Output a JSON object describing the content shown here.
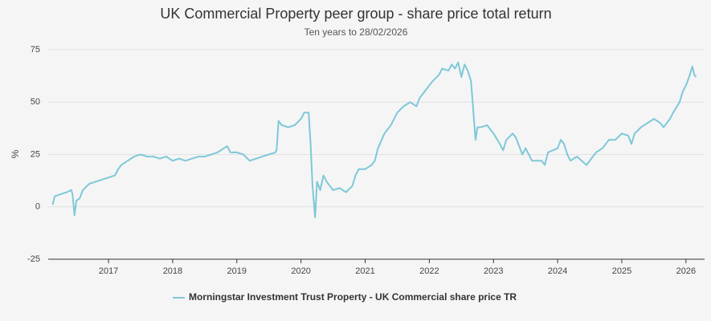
{
  "chart_data": {
    "type": "line",
    "title": "UK Commercial Property peer group - share price total return",
    "subtitle": "Ten years to 28/02/2026",
    "y_label": "%",
    "xlim": [
      2016.06,
      2026.29
    ],
    "xticks": [
      {
        "value": 2017,
        "label": "2017"
      },
      {
        "value": 2018,
        "label": "2018"
      },
      {
        "value": 2019,
        "label": "2019"
      },
      {
        "value": 2020,
        "label": "2020"
      },
      {
        "value": 2021,
        "label": "2021"
      },
      {
        "value": 2022,
        "label": "2022"
      },
      {
        "value": 2023,
        "label": "2023"
      },
      {
        "value": 2024,
        "label": "2024"
      },
      {
        "value": 2025,
        "label": "2025"
      },
      {
        "value": 2026,
        "label": "2026"
      }
    ],
    "ylim": [
      -25,
      75
    ],
    "yticks": [
      -25,
      0,
      25,
      50,
      75
    ],
    "grid": true,
    "legend": "bottom",
    "x": [
      2016.13,
      2016.16,
      2016.25,
      2016.35,
      2016.42,
      2016.44,
      2016.47,
      2016.5,
      2016.55,
      2016.6,
      2016.7,
      2016.8,
      2016.9,
      2017.0,
      2017.1,
      2017.15,
      2017.2,
      2017.3,
      2017.4,
      2017.5,
      2017.6,
      2017.7,
      2017.8,
      2017.9,
      2018.0,
      2018.1,
      2018.2,
      2018.3,
      2018.4,
      2018.5,
      2018.6,
      2018.7,
      2018.8,
      2018.85,
      2018.9,
      2019.0,
      2019.1,
      2019.2,
      2019.3,
      2019.4,
      2019.5,
      2019.6,
      2019.62,
      2019.65,
      2019.7,
      2019.8,
      2019.9,
      2020.0,
      2020.05,
      2020.12,
      2020.15,
      2020.18,
      2020.22,
      2020.25,
      2020.3,
      2020.35,
      2020.4,
      2020.45,
      2020.5,
      2020.6,
      2020.7,
      2020.8,
      2020.85,
      2020.9,
      2021.0,
      2021.1,
      2021.15,
      2021.2,
      2021.3,
      2021.4,
      2021.5,
      2021.6,
      2021.7,
      2021.8,
      2021.85,
      2021.95,
      2022.05,
      2022.15,
      2022.2,
      2022.3,
      2022.35,
      2022.4,
      2022.45,
      2022.5,
      2022.55,
      2022.6,
      2022.65,
      2022.7,
      2022.72,
      2022.75,
      2022.8,
      2022.9,
      2023.0,
      2023.1,
      2023.15,
      2023.2,
      2023.3,
      2023.35,
      2023.45,
      2023.5,
      2023.6,
      2023.75,
      2023.8,
      2023.85,
      2024.0,
      2024.05,
      2024.1,
      2024.15,
      2024.2,
      2024.3,
      2024.45,
      2024.5,
      2024.6,
      2024.7,
      2024.8,
      2024.9,
      2025.0,
      2025.1,
      2025.15,
      2025.2,
      2025.3,
      2025.4,
      2025.5,
      2025.6,
      2025.65,
      2025.75,
      2025.8,
      2025.9,
      2025.95,
      2026.0,
      2026.05,
      2026.1,
      2026.13,
      2026.16
    ],
    "series": [
      {
        "name": "Morningstar Investment Trust Property - UK Commercial share price TR",
        "color": "#7ec8d8",
        "values": [
          1,
          5,
          6,
          7,
          8,
          6,
          -4,
          3,
          4,
          8,
          11,
          12,
          13,
          14,
          15,
          18,
          20,
          22,
          24,
          25,
          24,
          24,
          23,
          24,
          22,
          23,
          22,
          23,
          24,
          24,
          25,
          26,
          28,
          29,
          26,
          26,
          25,
          22,
          23,
          24,
          25,
          26,
          27,
          41,
          39,
          38,
          39,
          42,
          45,
          45,
          30,
          10,
          -5,
          12,
          8,
          15,
          12,
          10,
          8,
          9,
          7,
          10,
          15,
          18,
          18,
          20,
          22,
          28,
          35,
          39,
          45,
          48,
          50,
          48,
          52,
          56,
          60,
          63,
          66,
          65,
          68,
          66,
          69,
          62,
          68,
          65,
          60,
          40,
          32,
          38,
          38,
          39,
          35,
          30,
          27,
          32,
          35,
          33,
          25,
          28,
          22,
          22,
          20,
          26,
          28,
          32,
          30,
          25,
          22,
          24,
          20,
          22,
          26,
          28,
          32,
          32,
          35,
          34,
          30,
          35,
          38,
          40,
          42,
          40,
          38,
          42,
          45,
          50,
          55,
          58,
          62,
          67,
          63,
          62
        ]
      }
    ]
  }
}
